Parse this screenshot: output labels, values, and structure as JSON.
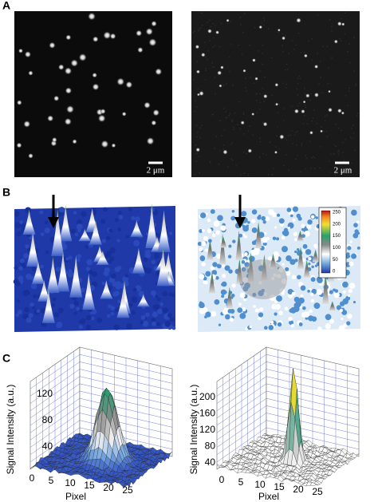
{
  "panels": {
    "a": {
      "label": "A",
      "scale_bars": [
        "2 μm",
        "2 μm"
      ]
    },
    "b": {
      "label": "B",
      "colorbar_ticks": [
        250,
        200,
        150,
        100,
        50,
        0
      ]
    },
    "c": {
      "label": "C",
      "left": {
        "y_label": "Signal Intensity (a.u.)",
        "x_label": "Pixel",
        "z_ticks": [
          120,
          80,
          40
        ],
        "x_ticks": [
          0,
          5,
          10,
          15,
          20,
          25
        ]
      },
      "right": {
        "y_label": "Signal Intensity (a.u.)",
        "x_label": "Pixel",
        "z_ticks": [
          200,
          160,
          120,
          80,
          40
        ],
        "x_ticks": [
          0,
          5,
          10,
          15,
          20,
          25
        ]
      }
    }
  }
}
